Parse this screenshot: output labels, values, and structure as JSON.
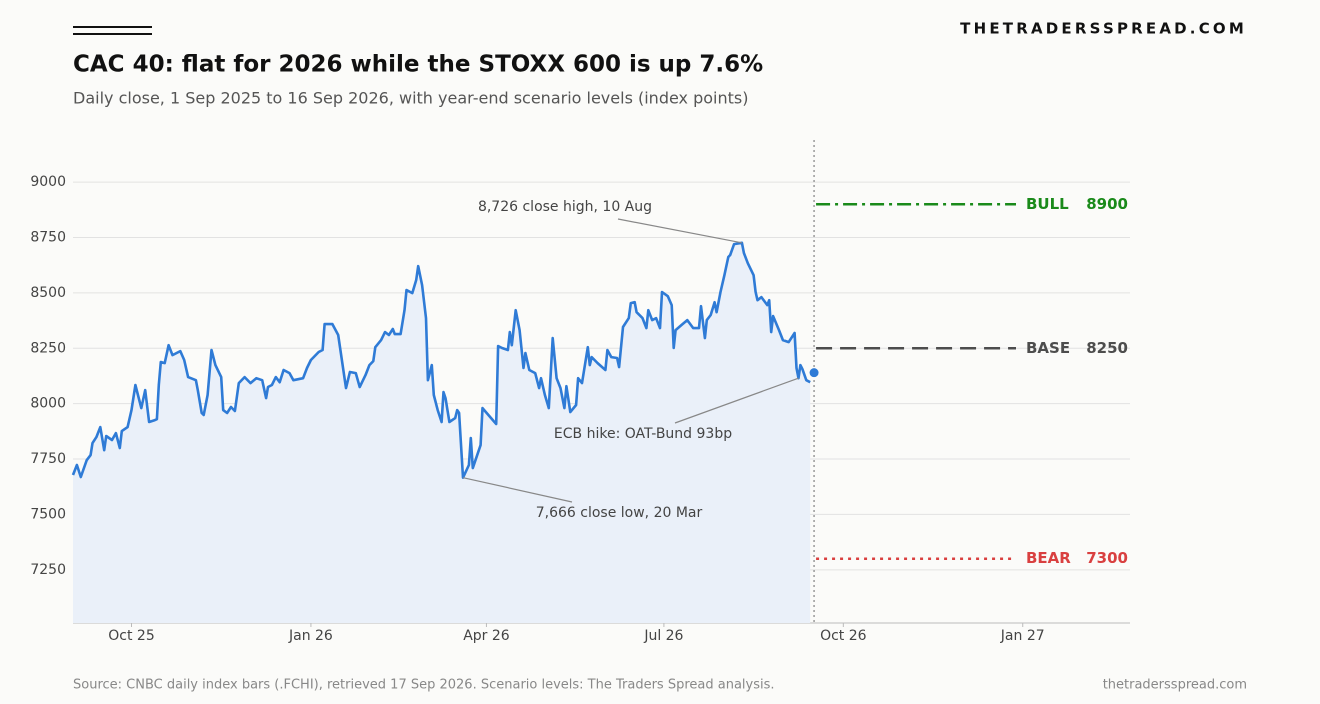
{
  "chart_data": {
    "type": "line",
    "brand": "THETRADERSSPREAD.COM",
    "title": "CAC 40: flat for 2026 while the STOXX 600 is up 7.6%",
    "subtitle": "Daily close, 1 Sep 2025 to 16 Sep 2026, with year-end scenario levels (index points)",
    "source": "Source: CNBC daily index bars (.FCHI), retrieved 17 Sep 2026. Scenario levels: The Traders Spread analysis.",
    "site": "thetradersspread.com",
    "color": "#2f7bd6",
    "fill_color": "#eaf0f9",
    "x": [
      "2025-09-01",
      "2025-09-03",
      "2025-09-05",
      "2025-09-08",
      "2025-09-10",
      "2025-09-11",
      "2025-09-13",
      "2025-09-15",
      "2025-09-17",
      "2025-09-18",
      "2025-09-21",
      "2025-09-23",
      "2025-09-25",
      "2025-09-26",
      "2025-09-29",
      "2025-10-01",
      "2025-10-03",
      "2025-10-06",
      "2025-10-08",
      "2025-10-10",
      "2025-10-13",
      "2025-10-14",
      "2025-10-15",
      "2025-10-16",
      "2025-10-18",
      "2025-10-20",
      "2025-10-22",
      "2025-10-26",
      "2025-10-28",
      "2025-10-30",
      "2025-11-03",
      "2025-11-04",
      "2025-11-06",
      "2025-11-07",
      "2025-11-09",
      "2025-11-11",
      "2025-11-13",
      "2025-11-16",
      "2025-11-17",
      "2025-11-19",
      "2025-11-21",
      "2025-11-23",
      "2025-11-25",
      "2025-11-28",
      "2025-12-01",
      "2025-12-04",
      "2025-12-07",
      "2025-12-09",
      "2025-12-10",
      "2025-12-12",
      "2025-12-14",
      "2025-12-16",
      "2025-12-18",
      "2025-12-21",
      "2025-12-23",
      "2025-12-28",
      "2025-12-30",
      "2026-01-01",
      "2026-01-05",
      "2026-01-07",
      "2026-01-08",
      "2026-01-12",
      "2026-01-15",
      "2026-01-19",
      "2026-01-21",
      "2026-01-24",
      "2026-01-26",
      "2026-01-29",
      "2026-01-31",
      "2026-02-02",
      "2026-02-03",
      "2026-02-06",
      "2026-02-08",
      "2026-02-10",
      "2026-02-12",
      "2026-02-13",
      "2026-02-16",
      "2026-02-18",
      "2026-02-19",
      "2026-02-22",
      "2026-02-24",
      "2026-02-25",
      "2026-02-27",
      "2026-03-01",
      "2026-03-02",
      "2026-03-04",
      "2026-03-05",
      "2026-03-07",
      "2026-03-09",
      "2026-03-10",
      "2026-03-11",
      "2026-03-13",
      "2026-03-16",
      "2026-03-17",
      "2026-03-18",
      "2026-03-20",
      "2026-03-23",
      "2026-03-24",
      "2026-03-25",
      "2026-03-29",
      "2026-03-30",
      "2026-04-02",
      "2026-04-06",
      "2026-04-07",
      "2026-04-09",
      "2026-04-12",
      "2026-04-13",
      "2026-04-14",
      "2026-04-16",
      "2026-04-18",
      "2026-04-20",
      "2026-04-21",
      "2026-04-23",
      "2026-04-26",
      "2026-04-28",
      "2026-04-29",
      "2026-05-01",
      "2026-05-03",
      "2026-05-05",
      "2026-05-07",
      "2026-05-09",
      "2026-05-11",
      "2026-05-12",
      "2026-05-14",
      "2026-05-17",
      "2026-05-18",
      "2026-05-20",
      "2026-05-23",
      "2026-05-24",
      "2026-05-25",
      "2026-05-28",
      "2026-06-01",
      "2026-06-02",
      "2026-06-04",
      "2026-06-07",
      "2026-06-08",
      "2026-06-10",
      "2026-06-13",
      "2026-06-14",
      "2026-06-16",
      "2026-06-17",
      "2026-06-20",
      "2026-06-22",
      "2026-06-23",
      "2026-06-25",
      "2026-06-27",
      "2026-06-29",
      "2026-06-30",
      "2026-07-03",
      "2026-07-05",
      "2026-07-06",
      "2026-07-07",
      "2026-07-10",
      "2026-07-13",
      "2026-07-16",
      "2026-07-19",
      "2026-07-20",
      "2026-07-22",
      "2026-07-23",
      "2026-07-25",
      "2026-07-27",
      "2026-07-28",
      "2026-07-30",
      "2026-08-01",
      "2026-08-03",
      "2026-08-04",
      "2026-08-06",
      "2026-08-10",
      "2026-08-11",
      "2026-08-13",
      "2026-08-16",
      "2026-08-17",
      "2026-08-18",
      "2026-08-20",
      "2026-08-23",
      "2026-08-24",
      "2026-08-25",
      "2026-08-26",
      "2026-08-29",
      "2026-08-31",
      "2026-09-03",
      "2026-09-06",
      "2026-09-07",
      "2026-09-08",
      "2026-09-09",
      "2026-09-10",
      "2026-09-12",
      "2026-09-14"
    ],
    "values": [
      7678,
      7723,
      7669,
      7745,
      7768,
      7822,
      7849,
      7894,
      7790,
      7854,
      7836,
      7867,
      7800,
      7876,
      7894,
      7971,
      8084,
      7980,
      8061,
      7917,
      7926,
      7930,
      8084,
      8188,
      8183,
      8264,
      8219,
      8237,
      8197,
      8120,
      8106,
      8061,
      7958,
      7949,
      8039,
      8242,
      8174,
      8120,
      7971,
      7958,
      7985,
      7967,
      8093,
      8120,
      8093,
      8115,
      8106,
      8025,
      8075,
      8084,
      8120,
      8097,
      8152,
      8138,
      8106,
      8115,
      8161,
      8197,
      8233,
      8242,
      8359,
      8359,
      8310,
      8070,
      8143,
      8138,
      8075,
      8129,
      8174,
      8192,
      8255,
      8287,
      8323,
      8310,
      8337,
      8314,
      8314,
      8422,
      8513,
      8499,
      8558,
      8621,
      8535,
      8386,
      8106,
      8174,
      8039,
      7971,
      7917,
      8052,
      8025,
      7917,
      7935,
      7971,
      7958,
      7666,
      7723,
      7845,
      7709,
      7813,
      7980,
      7949,
      7908,
      8260,
      8251,
      8242,
      8323,
      8264,
      8422,
      8332,
      8161,
      8228,
      8152,
      8138,
      8070,
      8115,
      8039,
      7980,
      8296,
      8115,
      8070,
      7980,
      8079,
      7962,
      7994,
      8115,
      8093,
      8255,
      8174,
      8210,
      8183,
      8152,
      8242,
      8210,
      8206,
      8165,
      8346,
      8386,
      8454,
      8458,
      8413,
      8386,
      8341,
      8422,
      8377,
      8386,
      8341,
      8504,
      8485,
      8445,
      8251,
      8332,
      8355,
      8377,
      8341,
      8341,
      8440,
      8296,
      8377,
      8400,
      8458,
      8413,
      8504,
      8580,
      8662,
      8671,
      8720,
      8726,
      8680,
      8634,
      8580,
      8504,
      8467,
      8481,
      8445,
      8467,
      8323,
      8395,
      8332,
      8287,
      8278,
      8319,
      8161,
      8115,
      8174,
      8156,
      8106,
      8097
    ],
    "last_close": {
      "x": "2026-09-16",
      "value": 8140
    },
    "xlim": [
      "2025-09-01",
      "2027-02-25"
    ],
    "xticks": [
      {
        "value": "2025-10-01",
        "label": "Oct 25"
      },
      {
        "value": "2026-01-01",
        "label": "Jan 26"
      },
      {
        "value": "2026-04-01",
        "label": "Apr 26"
      },
      {
        "value": "2026-07-01",
        "label": "Jul 26"
      },
      {
        "value": "2026-10-01",
        "label": "Oct 26"
      },
      {
        "value": "2027-01-01",
        "label": "Jan 27"
      }
    ],
    "ylim": [
      7010,
      9190
    ],
    "yticks": [
      7250,
      7500,
      7750,
      8000,
      8250,
      8500,
      8750,
      9000
    ],
    "grid": true,
    "scenarios": [
      {
        "name": "BULL",
        "value": 8900,
        "color": "#1a8a1a",
        "dash": "dashdot"
      },
      {
        "name": "BASE",
        "value": 8250,
        "color": "#4d4d4d",
        "dash": "dashed"
      },
      {
        "name": "BEAR",
        "value": 7300,
        "color": "#d94040",
        "dash": "dotted"
      }
    ],
    "annotations": [
      {
        "text": "8,726 close high, 10 Aug",
        "x": "2026-08-10",
        "value": 8726
      },
      {
        "text": "ECB hike: OAT-Bund 93bp",
        "x": "2026-09-08",
        "value": 8115
      },
      {
        "text": "7,666 close low, 20 Mar",
        "x": "2026-03-20",
        "value": 7666
      }
    ]
  }
}
